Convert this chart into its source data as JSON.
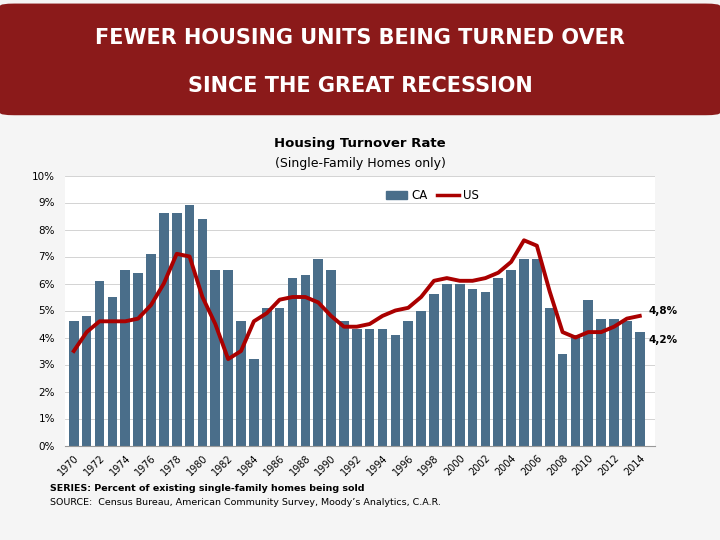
{
  "title_line1": "FEWER HOUSING UNITS BEING TURNED OVER",
  "title_line2": "SINCE THE GREAT RECESSION",
  "subtitle_line1": "Housing Turnover Rate",
  "subtitle_line2": "(Single-Family Homes only)",
  "title_bg_color": "#8B1A1A",
  "title_text_color": "#FFFFFF",
  "bar_color": "#4A6E8A",
  "line_color": "#AA0000",
  "background_color": "#F5F5F5",
  "years": [
    1970,
    1971,
    1972,
    1973,
    1974,
    1975,
    1976,
    1977,
    1978,
    1979,
    1980,
    1981,
    1982,
    1983,
    1984,
    1985,
    1986,
    1987,
    1988,
    1989,
    1990,
    1991,
    1992,
    1993,
    1994,
    1995,
    1996,
    1997,
    1998,
    1999,
    2000,
    2001,
    2002,
    2003,
    2004,
    2005,
    2006,
    2007,
    2008,
    2009,
    2010,
    2011,
    2012,
    2013,
    2014
  ],
  "ca_values": [
    0.046,
    0.048,
    0.061,
    0.055,
    0.065,
    0.064,
    0.071,
    0.086,
    0.086,
    0.089,
    0.084,
    0.065,
    0.065,
    0.046,
    0.032,
    0.051,
    0.051,
    0.062,
    0.063,
    0.069,
    0.065,
    0.046,
    0.043,
    0.043,
    0.043,
    0.041,
    0.046,
    0.05,
    0.056,
    0.06,
    0.06,
    0.058,
    0.057,
    0.062,
    0.065,
    0.069,
    0.069,
    0.051,
    0.034,
    0.041,
    0.054,
    0.047,
    0.047,
    0.046,
    0.042
  ],
  "us_values": [
    0.035,
    0.042,
    0.046,
    0.046,
    0.046,
    0.047,
    0.052,
    0.06,
    0.071,
    0.07,
    0.055,
    0.045,
    0.032,
    0.035,
    0.046,
    0.049,
    0.054,
    0.055,
    0.055,
    0.053,
    0.048,
    0.044,
    0.044,
    0.045,
    0.048,
    0.05,
    0.051,
    0.055,
    0.061,
    0.062,
    0.061,
    0.061,
    0.062,
    0.064,
    0.068,
    0.076,
    0.074,
    0.057,
    0.042,
    0.04,
    0.042,
    0.042,
    0.044,
    0.047,
    0.048
  ],
  "ytick_labels": [
    "0%",
    "1%",
    "2%",
    "3%",
    "4%",
    "5%",
    "6%",
    "7%",
    "8%",
    "9%",
    "10%"
  ],
  "ytick_values": [
    0,
    0.01,
    0.02,
    0.03,
    0.04,
    0.05,
    0.06,
    0.07,
    0.08,
    0.09,
    0.1
  ],
  "xtick_years": [
    1970,
    1972,
    1974,
    1976,
    1978,
    1980,
    1982,
    1984,
    1986,
    1988,
    1990,
    1992,
    1994,
    1996,
    1998,
    2000,
    2002,
    2004,
    2006,
    2008,
    2010,
    2012,
    2014
  ],
  "annotation_us_label": "4,8%",
  "annotation_ca_label": "4,2%",
  "footnote_line1": "SERIES: Percent of existing single-family homes being sold",
  "footnote_line2": "SOURCE:  Census Bureau, American Community Survey, Moody’s Analytics, C.A.R.",
  "ylim": [
    0,
    0.1
  ],
  "legend_ca": "CA",
  "legend_us": "US"
}
